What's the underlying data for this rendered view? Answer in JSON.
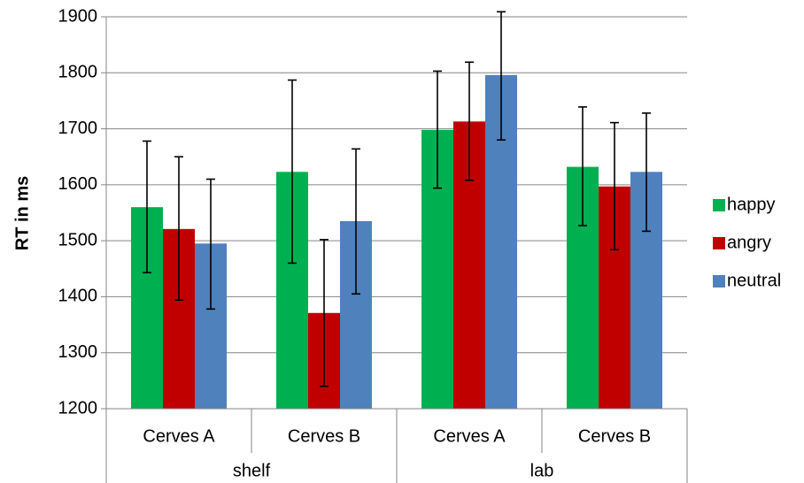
{
  "chart_data": {
    "type": "bar",
    "title": "",
    "xlabel": "",
    "ylabel": "RT in ms",
    "ylim": [
      1200,
      1900
    ],
    "yticks": [
      1200,
      1300,
      1400,
      1500,
      1600,
      1700,
      1800,
      1900
    ],
    "grid": true,
    "legend_position": "right",
    "groups": [
      {
        "label": "shelf",
        "categories": [
          "Cerves A",
          "Cerves B"
        ]
      },
      {
        "label": "lab",
        "categories": [
          "Cerves A",
          "Cerves B"
        ]
      }
    ],
    "categories": [
      "Cerves A",
      "Cerves B",
      "Cerves A",
      "Cerves B"
    ],
    "series": [
      {
        "name": "happy",
        "color": "#00b050",
        "values": [
          1560,
          1623,
          1698,
          1632
        ],
        "error_low": [
          1443,
          1460,
          1594,
          1527
        ],
        "error_high": [
          1678,
          1787,
          1803,
          1739
        ]
      },
      {
        "name": "angry",
        "color": "#c00000",
        "values": [
          1521,
          1371,
          1713,
          1597
        ],
        "error_low": [
          1394,
          1240,
          1608,
          1484
        ],
        "error_high": [
          1650,
          1502,
          1819,
          1711
        ]
      },
      {
        "name": "neutral",
        "color": "#4f81bd",
        "values": [
          1495,
          1535,
          1796,
          1623
        ],
        "error_low": [
          1378,
          1405,
          1680,
          1517
        ],
        "error_high": [
          1610,
          1664,
          1909,
          1728
        ]
      }
    ]
  }
}
